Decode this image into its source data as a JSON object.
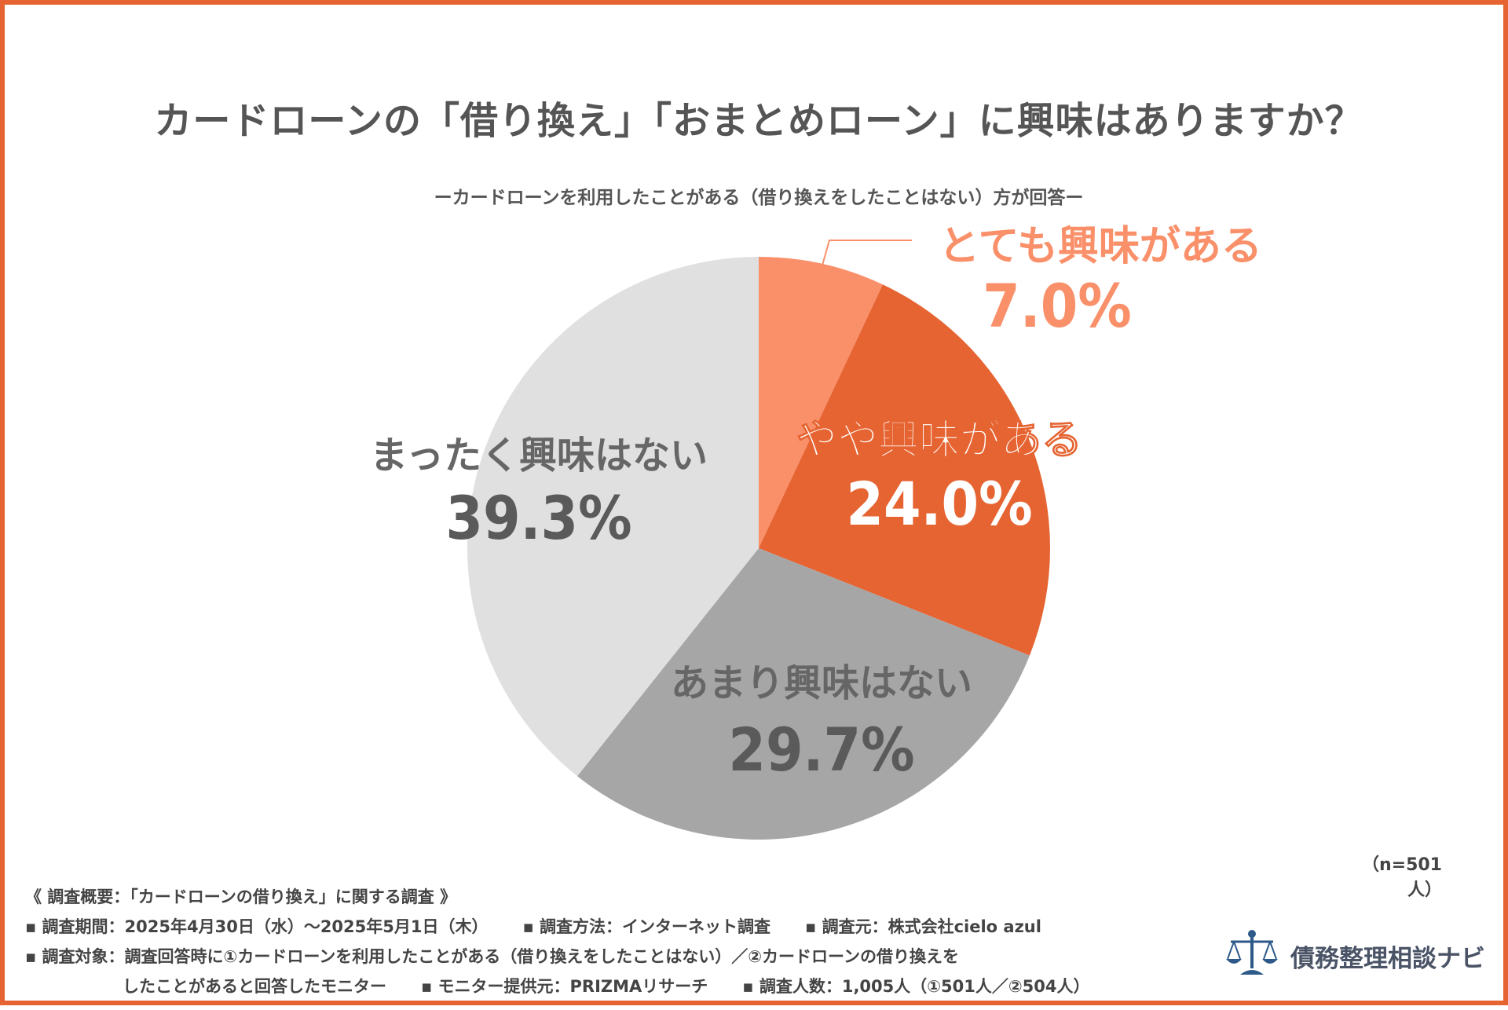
{
  "chart_data": {
    "type": "pie",
    "title": "カードローンの「借り換え」「おまとめローン」に興味はありますか？",
    "subtitle": "ーカードローンを利用したことがある（借り換えをしたことはない）方が回答ー",
    "n_label": "（n=501人）",
    "slices": [
      {
        "label": "とても興味がある",
        "value": 7.0,
        "display": "7.0%",
        "color": "#F9906A"
      },
      {
        "label": "やや興味がある",
        "value": 24.0,
        "display": "24.0%",
        "color": "#E66432"
      },
      {
        "label": "あまり興味はない",
        "value": 29.7,
        "display": "29.7%",
        "color": "#A6A6A6"
      },
      {
        "label": "まったく興味はない",
        "value": 39.3,
        "display": "39.3%",
        "color": "#E0E0E0"
      }
    ]
  },
  "survey": {
    "overview": "《 調査概要：「カードローンの借り換え」に関する調査 》",
    "period": "▪ 調査期間：2025年4月30日（水）～2025年5月1日（木）",
    "method": "▪ 調査方法：インターネット調査",
    "source": "▪ 調査元：株式会社cielo azul",
    "target_line1": "▪ 調査対象：調査回答時に①カードローンを利用したことがある（借り換えをしたことはない）／②カードローンの借り換えを",
    "target_line2": "したことがあると回答したモニター",
    "provider": "▪ モニター提供元：PRIZMAリサーチ",
    "count": "▪ 調査人数：1,005人（①501人／②504人）"
  },
  "brand": {
    "name": "債務整理相談ナビ",
    "icon": "scales-of-justice-icon",
    "color": "#2E5A8A"
  },
  "colors": {
    "accent": "#E66432",
    "accent_light": "#F9906A",
    "text_dark": "#555555"
  }
}
